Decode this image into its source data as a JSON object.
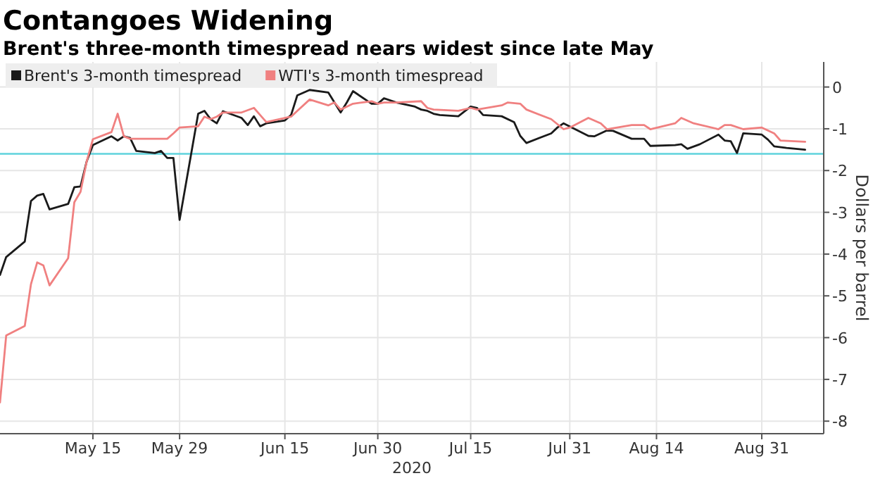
{
  "chart_data": {
    "type": "line",
    "title": "Contangoes Widening",
    "subtitle": "Brent's three-month timespread nears widest since late May",
    "xlabel": "2020",
    "ylabel": "Dollars per barrel",
    "xlim": [
      "2020-04-30",
      "2020-09-10"
    ],
    "xticks": [
      {
        "value": "2020-05-15",
        "label": "May 15"
      },
      {
        "value": "2020-05-29",
        "label": "May 29"
      },
      {
        "value": "2020-06-15",
        "label": "Jun 15"
      },
      {
        "value": "2020-06-30",
        "label": "Jun 30"
      },
      {
        "value": "2020-07-15",
        "label": "Jul 15"
      },
      {
        "value": "2020-07-31",
        "label": "Jul 31"
      },
      {
        "value": "2020-08-14",
        "label": "Aug 14"
      },
      {
        "value": "2020-08-31",
        "label": "Aug 31"
      }
    ],
    "ylim": [
      -8.3,
      0.6
    ],
    "yticks": [
      0,
      -1,
      -2,
      -3,
      -4,
      -5,
      -6,
      -7,
      -8
    ],
    "grid": true,
    "legend": "top left",
    "line_style": "solid",
    "marker": "none",
    "ref_lines": [
      {
        "axis": "y",
        "value": -1.6,
        "color": "#5fd3dd"
      }
    ],
    "series": [
      {
        "name": "Brent's 3-month timespread",
        "color": "#1a1a1a",
        "x": [
          "2020-04-30",
          "2020-05-01",
          "2020-05-04",
          "2020-05-05",
          "2020-05-06",
          "2020-05-07",
          "2020-05-08",
          "2020-05-11",
          "2020-05-12",
          "2020-05-13",
          "2020-05-14",
          "2020-05-15",
          "2020-05-18",
          "2020-05-19",
          "2020-05-20",
          "2020-05-21",
          "2020-05-22",
          "2020-05-25",
          "2020-05-26",
          "2020-05-27",
          "2020-05-28",
          "2020-05-29",
          "2020-06-01",
          "2020-06-02",
          "2020-06-03",
          "2020-06-04",
          "2020-06-05",
          "2020-06-08",
          "2020-06-09",
          "2020-06-10",
          "2020-06-11",
          "2020-06-12",
          "2020-06-15",
          "2020-06-16",
          "2020-06-17",
          "2020-06-19",
          "2020-06-22",
          "2020-06-23",
          "2020-06-24",
          "2020-06-25",
          "2020-06-26",
          "2020-06-29",
          "2020-06-30",
          "2020-07-01",
          "2020-07-03",
          "2020-07-06",
          "2020-07-07",
          "2020-07-08",
          "2020-07-09",
          "2020-07-10",
          "2020-07-13",
          "2020-07-15",
          "2020-07-16",
          "2020-07-17",
          "2020-07-20",
          "2020-07-22",
          "2020-07-23",
          "2020-07-24",
          "2020-07-28",
          "2020-07-29",
          "2020-07-30",
          "2020-08-03",
          "2020-08-04",
          "2020-08-06",
          "2020-08-07",
          "2020-08-10",
          "2020-08-12",
          "2020-08-13",
          "2020-08-17",
          "2020-08-18",
          "2020-08-19",
          "2020-08-21",
          "2020-08-24",
          "2020-08-25",
          "2020-08-26",
          "2020-08-27",
          "2020-08-28",
          "2020-08-31",
          "2020-09-01",
          "2020-09-02",
          "2020-09-04",
          "2020-09-07"
        ],
        "values": [
          -4.5,
          -4.07,
          -3.7,
          -2.73,
          -2.6,
          -2.56,
          -2.93,
          -2.8,
          -2.4,
          -2.38,
          -1.78,
          -1.39,
          -1.18,
          -1.28,
          -1.18,
          -1.22,
          -1.53,
          -1.58,
          -1.53,
          -1.7,
          -1.7,
          -3.18,
          -0.64,
          -0.57,
          -0.77,
          -0.87,
          -0.58,
          -0.74,
          -0.91,
          -0.7,
          -0.94,
          -0.87,
          -0.8,
          -0.67,
          -0.2,
          -0.07,
          -0.13,
          -0.37,
          -0.61,
          -0.37,
          -0.1,
          -0.4,
          -0.4,
          -0.27,
          -0.37,
          -0.47,
          -0.54,
          -0.57,
          -0.64,
          -0.67,
          -0.7,
          -0.47,
          -0.5,
          -0.67,
          -0.7,
          -0.84,
          -1.17,
          -1.34,
          -1.11,
          -0.97,
          -0.87,
          -1.17,
          -1.18,
          -1.04,
          -1.05,
          -1.24,
          -1.24,
          -1.41,
          -1.39,
          -1.37,
          -1.48,
          -1.37,
          -1.14,
          -1.28,
          -1.3,
          -1.58,
          -1.11,
          -1.14,
          -1.26,
          -1.42,
          -1.46,
          -1.5
        ]
      },
      {
        "name": "WTI's 3-month timespread",
        "color": "#f08080",
        "x": [
          "2020-04-30",
          "2020-05-01",
          "2020-05-04",
          "2020-05-05",
          "2020-05-06",
          "2020-05-07",
          "2020-05-08",
          "2020-05-11",
          "2020-05-12",
          "2020-05-13",
          "2020-05-14",
          "2020-05-15",
          "2020-05-18",
          "2020-05-19",
          "2020-05-20",
          "2020-05-21",
          "2020-05-25",
          "2020-05-27",
          "2020-05-28",
          "2020-05-29",
          "2020-06-01",
          "2020-06-02",
          "2020-06-03",
          "2020-06-04",
          "2020-06-05",
          "2020-06-08",
          "2020-06-10",
          "2020-06-11",
          "2020-06-12",
          "2020-06-16",
          "2020-06-17",
          "2020-06-19",
          "2020-06-22",
          "2020-06-23",
          "2020-06-24",
          "2020-06-25",
          "2020-06-26",
          "2020-06-29",
          "2020-06-30",
          "2020-07-01",
          "2020-07-03",
          "2020-07-07",
          "2020-07-08",
          "2020-07-09",
          "2020-07-13",
          "2020-07-15",
          "2020-07-16",
          "2020-07-20",
          "2020-07-21",
          "2020-07-23",
          "2020-07-24",
          "2020-07-28",
          "2020-07-30",
          "2020-07-31",
          "2020-08-03",
          "2020-08-05",
          "2020-08-06",
          "2020-08-10",
          "2020-08-12",
          "2020-08-13",
          "2020-08-17",
          "2020-08-18",
          "2020-08-20",
          "2020-08-24",
          "2020-08-25",
          "2020-08-26",
          "2020-08-28",
          "2020-08-31",
          "2020-09-02",
          "2020-09-03",
          "2020-09-07"
        ],
        "values": [
          -7.55,
          -5.95,
          -5.72,
          -4.72,
          -4.2,
          -4.27,
          -4.75,
          -4.1,
          -2.76,
          -2.51,
          -1.78,
          -1.25,
          -1.08,
          -0.64,
          -1.18,
          -1.24,
          -1.24,
          -1.24,
          -1.11,
          -0.97,
          -0.94,
          -0.71,
          -0.77,
          -0.71,
          -0.61,
          -0.61,
          -0.5,
          -0.67,
          -0.84,
          -0.71,
          -0.57,
          -0.3,
          -0.44,
          -0.37,
          -0.54,
          -0.47,
          -0.4,
          -0.34,
          -0.4,
          -0.37,
          -0.37,
          -0.34,
          -0.5,
          -0.54,
          -0.57,
          -0.5,
          -0.54,
          -0.44,
          -0.37,
          -0.4,
          -0.54,
          -0.77,
          -1.01,
          -0.97,
          -0.74,
          -0.87,
          -1.01,
          -0.91,
          -0.91,
          -1.01,
          -0.87,
          -0.74,
          -0.87,
          -1.01,
          -0.91,
          -0.91,
          -1.01,
          -0.97,
          -1.11,
          -1.28,
          -1.31
        ]
      }
    ]
  }
}
